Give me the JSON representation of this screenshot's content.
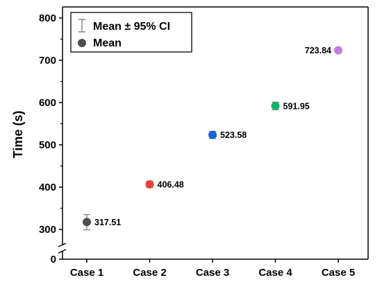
{
  "chart_data": {
    "type": "scatter",
    "ylabel": "Time (s)",
    "categories": [
      "Case 1",
      "Case 2",
      "Case 3",
      "Case 4",
      "Case 5"
    ],
    "series": [
      {
        "values": [
          317.51,
          406.48,
          523.58,
          591.95,
          723.84
        ],
        "ci_lower": [
          299,
          399,
          515,
          583,
          721
        ],
        "ci_upper": [
          335,
          414,
          532,
          601,
          727
        ],
        "labels": [
          "317.51",
          "406.48",
          "523.58",
          "591.95",
          "723.84"
        ],
        "colors": [
          "#4d4d4d",
          "#f03c3c",
          "#1565d8",
          "#12b36a",
          "#c47ae0"
        ]
      }
    ],
    "ylim": [
      0,
      800
    ],
    "y_axis_break": [
      0,
      250
    ],
    "yticks": [
      "0",
      "300",
      "400",
      "500",
      "600",
      "700",
      "800"
    ],
    "ytick_values": [
      0,
      300,
      400,
      500,
      600,
      700,
      800
    ],
    "grid": false,
    "legend": {
      "position": "top-left",
      "entries": [
        {
          "label": "Mean ± 95% CI",
          "marker": "errorbar"
        },
        {
          "label": "Mean",
          "marker": "circle"
        }
      ]
    }
  }
}
